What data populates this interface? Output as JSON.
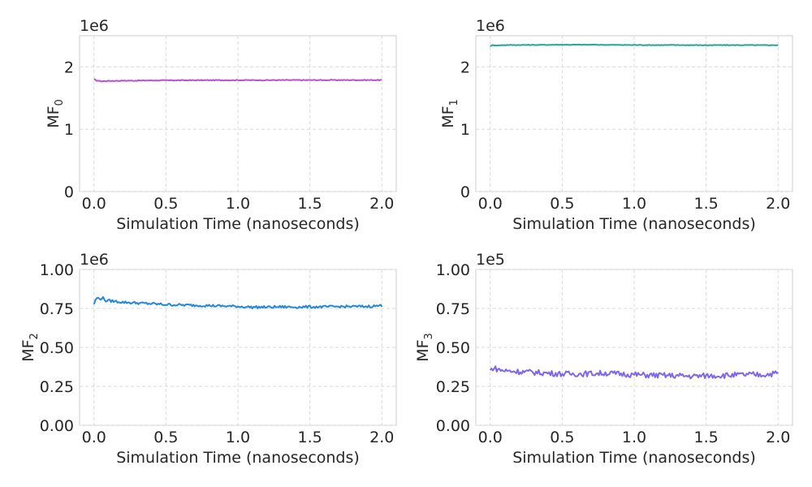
{
  "chart_data": [
    {
      "type": "line",
      "ylabel_base": "MF",
      "ylabel_sub": "0",
      "xlabel": "Simulation Time (nanoseconds)",
      "offset_text": "1e6",
      "scale": 1000000,
      "xlim": [
        -0.1,
        2.1
      ],
      "ylim": [
        0,
        2.5
      ],
      "xticks": [
        "0.0",
        "0.5",
        "1.0",
        "1.5",
        "2.0"
      ],
      "xtick_values": [
        0,
        0.5,
        1,
        1.5,
        2
      ],
      "yticks": [
        "0",
        "1",
        "2"
      ],
      "ytick_values": [
        0,
        1,
        2
      ],
      "grid": true,
      "color": "#b94fd6",
      "noise": 0.006,
      "series": [
        {
          "x": [
            0,
            0.02,
            0.05,
            0.1,
            0.2,
            0.3,
            0.4,
            0.5,
            0.6,
            0.8,
            1.0,
            1.2,
            1.4,
            1.6,
            1.8,
            2.0
          ],
          "values": [
            1.8,
            1.78,
            1.77,
            1.775,
            1.778,
            1.78,
            1.782,
            1.784,
            1.785,
            1.786,
            1.787,
            1.787,
            1.788,
            1.788,
            1.789,
            1.789
          ]
        }
      ]
    },
    {
      "type": "line",
      "ylabel_base": "MF",
      "ylabel_sub": "1",
      "xlabel": "Simulation Time (nanoseconds)",
      "offset_text": "1e6",
      "scale": 1000000,
      "xlim": [
        -0.1,
        2.1
      ],
      "ylim": [
        0,
        2.5
      ],
      "xticks": [
        "0.0",
        "0.5",
        "1.0",
        "1.5",
        "2.0"
      ],
      "xtick_values": [
        0,
        0.5,
        1,
        1.5,
        2
      ],
      "yticks": [
        "0",
        "1",
        "2"
      ],
      "ytick_values": [
        0,
        1,
        2
      ],
      "grid": true,
      "color": "#26a69a",
      "noise": 0.005,
      "series": [
        {
          "x": [
            0,
            0.02,
            0.05,
            0.1,
            0.3,
            0.5,
            0.7,
            0.9,
            1.1,
            1.3,
            1.5,
            1.7,
            1.9,
            2.0
          ],
          "values": [
            2.33,
            2.35,
            2.345,
            2.35,
            2.352,
            2.355,
            2.355,
            2.352,
            2.35,
            2.35,
            2.348,
            2.35,
            2.348,
            2.35
          ]
        }
      ]
    },
    {
      "type": "line",
      "ylabel_base": "MF",
      "ylabel_sub": "2",
      "xlabel": "Simulation Time (nanoseconds)",
      "offset_text": "1e6",
      "scale": 1000000,
      "xlim": [
        -0.1,
        2.1
      ],
      "ylim": [
        0,
        1.0
      ],
      "xticks": [
        "0.0",
        "0.5",
        "1.0",
        "1.5",
        "2.0"
      ],
      "xtick_values": [
        0,
        0.5,
        1,
        1.5,
        2
      ],
      "yticks": [
        "0.00",
        "0.25",
        "0.50",
        "0.75",
        "1.00"
      ],
      "ytick_values": [
        0,
        0.25,
        0.5,
        0.75,
        1.0
      ],
      "grid": true,
      "color": "#1e88e5",
      "noise": 0.008,
      "series": [
        {
          "x": [
            0,
            0.02,
            0.04,
            0.06,
            0.08,
            0.1,
            0.15,
            0.2,
            0.3,
            0.4,
            0.5,
            0.6,
            0.7,
            0.8,
            0.9,
            1.0,
            1.1,
            1.2,
            1.3,
            1.4,
            1.5,
            1.6,
            1.7,
            1.8,
            1.9,
            2.0
          ],
          "values": [
            0.78,
            0.82,
            0.81,
            0.82,
            0.8,
            0.8,
            0.795,
            0.79,
            0.785,
            0.78,
            0.775,
            0.772,
            0.77,
            0.768,
            0.765,
            0.763,
            0.758,
            0.758,
            0.76,
            0.759,
            0.76,
            0.76,
            0.762,
            0.762,
            0.763,
            0.768
          ]
        }
      ]
    },
    {
      "type": "line",
      "ylabel_base": "MF",
      "ylabel_sub": "3",
      "xlabel": "Simulation Time (nanoseconds)",
      "offset_text": "1e5",
      "scale": 100000,
      "xlim": [
        -0.1,
        2.1
      ],
      "ylim": [
        0,
        1.0
      ],
      "xticks": [
        "0.0",
        "0.5",
        "1.0",
        "1.5",
        "2.0"
      ],
      "xtick_values": [
        0,
        0.5,
        1,
        1.5,
        2
      ],
      "yticks": [
        "0.00",
        "0.25",
        "0.50",
        "0.75",
        "1.00"
      ],
      "ytick_values": [
        0,
        0.25,
        0.5,
        0.75,
        1.0
      ],
      "grid": true,
      "color": "#7b68ee",
      "noise": 0.018,
      "series": [
        {
          "x": [
            0,
            0.02,
            0.05,
            0.1,
            0.2,
            0.3,
            0.4,
            0.5,
            0.6,
            0.7,
            0.8,
            0.9,
            1.0,
            1.1,
            1.2,
            1.3,
            1.4,
            1.5,
            1.6,
            1.7,
            1.8,
            1.9,
            2.0
          ],
          "values": [
            0.35,
            0.37,
            0.36,
            0.35,
            0.345,
            0.34,
            0.335,
            0.33,
            0.33,
            0.332,
            0.335,
            0.33,
            0.325,
            0.322,
            0.32,
            0.318,
            0.315,
            0.318,
            0.32,
            0.322,
            0.325,
            0.325,
            0.335
          ]
        }
      ]
    }
  ]
}
